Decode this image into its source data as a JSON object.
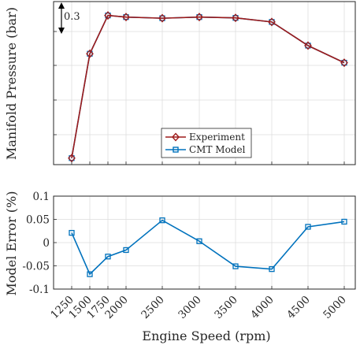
{
  "chart_data": [
    {
      "type": "line",
      "ylabel": "Manifold Pressure (bar)",
      "x": [
        1250,
        1500,
        1750,
        2000,
        2500,
        3000,
        3500,
        4000,
        4500,
        5000
      ],
      "xlim": [
        1250,
        5000
      ],
      "xticks": [
        "",
        "",
        "",
        "",
        "",
        "",
        "",
        "",
        "",
        ""
      ],
      "ylim": [
        0,
        1
      ],
      "yticks": [
        "",
        "",
        "",
        ""
      ],
      "grid": true,
      "legend": "lower-center",
      "annotation": "0.3",
      "series": [
        {
          "name": "Experiment",
          "color": "#9e1b1b",
          "marker": "diamond",
          "values": [
            0.04,
            0.68,
            0.915,
            0.905,
            0.898,
            0.905,
            0.9,
            0.875,
            0.73,
            0.625
          ]
        },
        {
          "name": "CMT Model",
          "color": "#0072bd",
          "marker": "square",
          "values": [
            0.04,
            0.68,
            0.915,
            0.905,
            0.898,
            0.905,
            0.9,
            0.875,
            0.73,
            0.625
          ]
        }
      ]
    },
    {
      "type": "line",
      "ylabel": "Model Error (%)",
      "xlabel": "Engine Speed (rpm)",
      "x": [
        1250,
        1500,
        1750,
        2000,
        2500,
        3000,
        3500,
        4000,
        4500,
        5000
      ],
      "xlim": [
        1250,
        5000
      ],
      "xticks": [
        "1250",
        "1500",
        "1750",
        "2000",
        "2500",
        "3000",
        "3500",
        "4000",
        "4500",
        "5000"
      ],
      "ylim": [
        -0.1,
        0.1
      ],
      "yticks": [
        "0.1",
        "0.05",
        "0",
        "-0.05",
        "-0.1"
      ],
      "grid": true,
      "series": [
        {
          "name": "",
          "color": "#0072bd",
          "marker": "square",
          "values": [
            0.021,
            -0.068,
            -0.03,
            -0.016,
            0.048,
            0.003,
            -0.051,
            -0.057,
            0.034,
            0.045
          ]
        }
      ]
    }
  ]
}
